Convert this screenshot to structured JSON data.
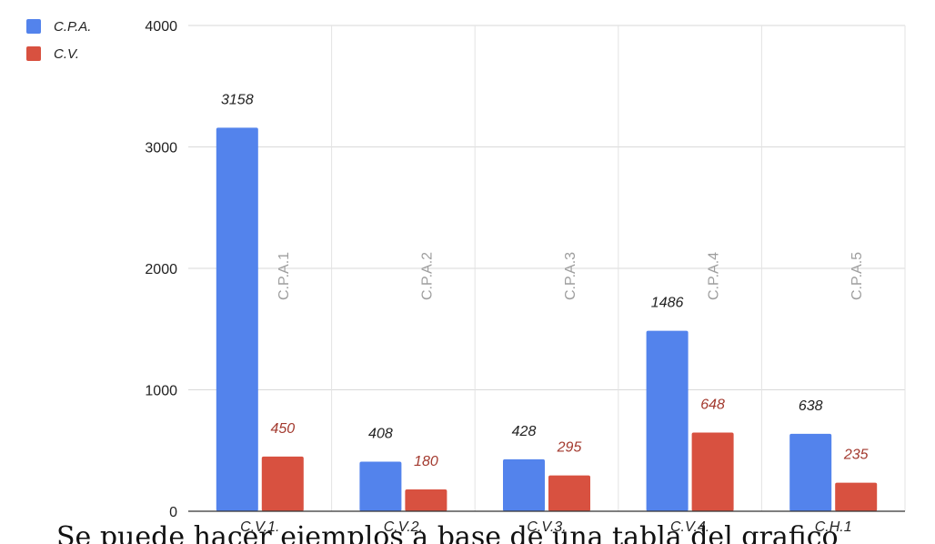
{
  "chart_data": {
    "type": "bar",
    "categories": [
      "C.V.1.",
      "C.V.2.",
      "C.V.3.",
      "C.V.4.",
      "C.H.1"
    ],
    "series": [
      {
        "name": "C.P.A.",
        "values": [
          3158,
          408,
          428,
          1486,
          638
        ],
        "color": "#5383ec"
      },
      {
        "name": "C.V.",
        "values": [
          450,
          180,
          295,
          648,
          235
        ],
        "color": "#d85140"
      }
    ],
    "data_label_colors": [
      "#222222",
      "#a33a2f"
    ],
    "annotations": [
      "C.P.A.1",
      "C.P.A.2",
      "C.P.A.3",
      "C.P.A.4",
      "C.P.A.5"
    ],
    "y_ticks": [
      0,
      1000,
      2000,
      3000,
      4000
    ],
    "ylim": [
      0,
      4000
    ],
    "grid": true,
    "legend_position": "top-left",
    "caption": "Se puede hacer ejemplos a base de una tabla del grafico"
  }
}
